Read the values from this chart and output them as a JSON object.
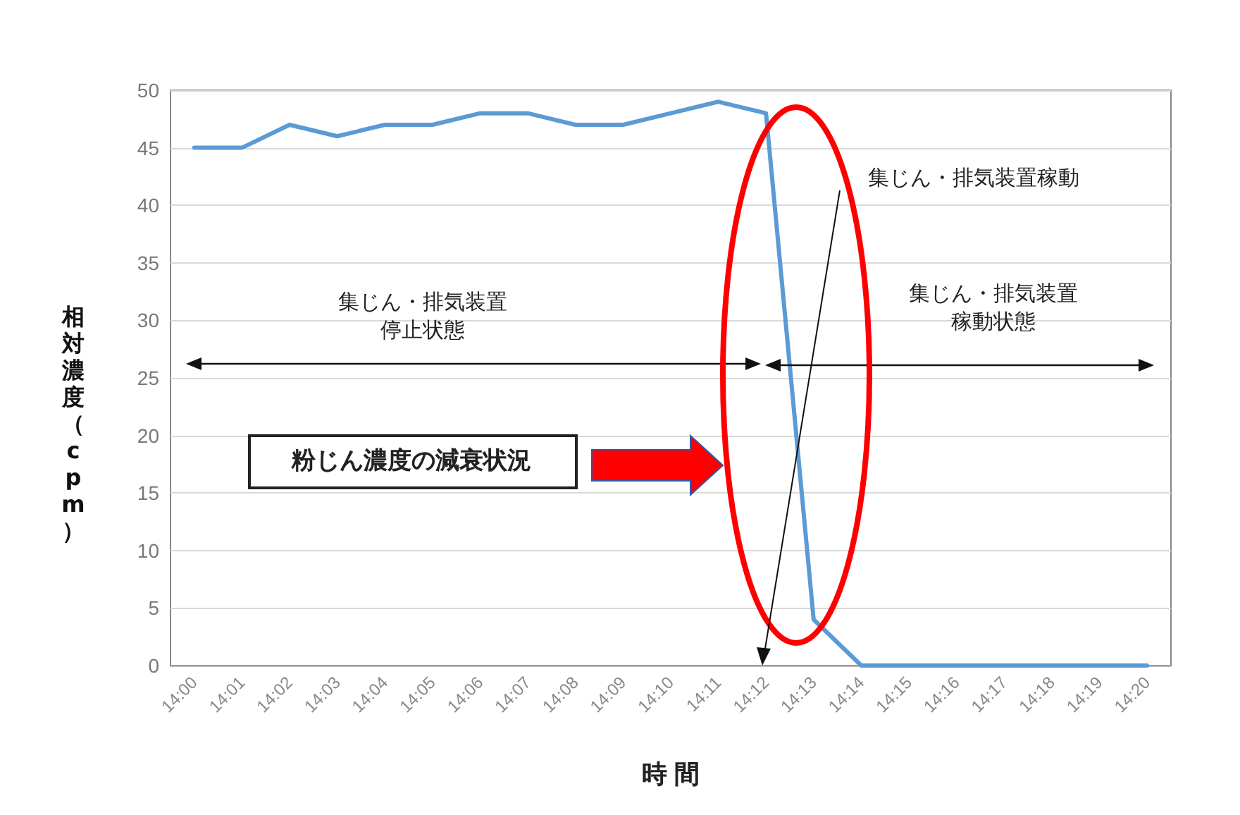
{
  "chart_data": {
    "type": "line",
    "xlabel": "時 間",
    "ylabel": "相対濃度（cpm）",
    "categories": [
      "14:00",
      "14:01",
      "14:02",
      "14:03",
      "14:04",
      "14:05",
      "14:06",
      "14:07",
      "14:08",
      "14:09",
      "14:10",
      "14:11",
      "14:12",
      "14:13",
      "14:14",
      "14:15",
      "14:16",
      "14:17",
      "14:18",
      "14:19",
      "14:20"
    ],
    "series": [
      {
        "color": "#5b9bd5",
        "values": [
          45,
          45,
          47,
          46,
          47,
          47,
          48,
          48,
          47,
          47,
          48,
          49,
          48,
          4,
          0,
          0,
          0,
          0,
          0,
          0,
          0
        ]
      }
    ],
    "ylim": [
      0,
      50
    ],
    "yticks": [
      0,
      5,
      10,
      15,
      20,
      25,
      30,
      35,
      40,
      45,
      50
    ],
    "grid": "y",
    "marker": "none",
    "line_style": "solid",
    "annotations": [
      "集じん・排気装置停止状態",
      "集じん・排気装置稼動状態",
      "集じん・排気装置稼動",
      "粉じん濃度の減衰状況"
    ]
  }
}
